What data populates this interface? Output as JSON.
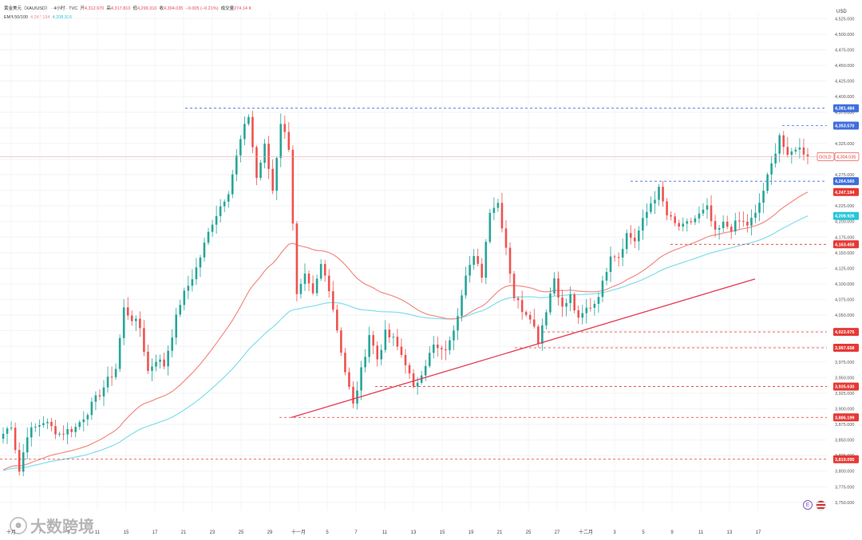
{
  "legend": {
    "symbol": "黄金美元（XAU/USD） · 4小时 · TVC",
    "open_label": "开",
    "open": "4,312.970",
    "high_label": "高",
    "high": "4,317.810",
    "low_label": "低",
    "low": "4,299.310",
    "close_label": "收",
    "close": "4,304.035",
    "change": "−9.005 (−0.21%)",
    "volume_label": "成交量",
    "volume": "274.14 K",
    "ema_label": "EMA 50/100",
    "ema50": "4,247.194",
    "ema100": "4,208.926"
  },
  "watermark": {
    "text": "大数跨境"
  },
  "icons": {
    "event": "e-event-icon",
    "flag": "us-flag-icon"
  },
  "chart_data": {
    "type": "candlestick",
    "currency": "USD",
    "y_range": [
      3725,
      4550
    ],
    "y_ticks": [
      3750,
      3775,
      3800,
      3825,
      3850,
      3875,
      3900,
      3925,
      3950,
      3975,
      4000,
      4025,
      4050,
      4075,
      4100,
      4125,
      4150,
      4175,
      4200,
      4225,
      4250,
      4275,
      4300,
      4325,
      4350,
      4375,
      4400,
      4425,
      4450,
      4475,
      4500,
      4525
    ],
    "x_ticks": [
      "十月",
      "7",
      "9",
      "11",
      "15",
      "17",
      "21",
      "23",
      "25",
      "29",
      "十一月",
      "5",
      "7",
      "11",
      "13",
      "15",
      "19",
      "21",
      "25",
      "27",
      "十二月",
      "3",
      "5",
      "9",
      "11",
      "13",
      "17"
    ],
    "anchors": [
      [
        0,
        3860
      ],
      [
        2,
        3875
      ],
      [
        4,
        3800
      ],
      [
        6,
        3860
      ],
      [
        10,
        3880
      ],
      [
        14,
        3860
      ],
      [
        18,
        3870
      ],
      [
        22,
        3905
      ],
      [
        28,
        3965
      ],
      [
        30,
        4060
      ],
      [
        34,
        4030
      ],
      [
        36,
        3960
      ],
      [
        38,
        3980
      ],
      [
        40,
        3970
      ],
      [
        44,
        4070
      ],
      [
        48,
        4125
      ],
      [
        52,
        4200
      ],
      [
        56,
        4250
      ],
      [
        59,
        4330
      ],
      [
        61,
        4370
      ],
      [
        63,
        4270
      ],
      [
        65,
        4320
      ],
      [
        67,
        4250
      ],
      [
        69,
        4360
      ],
      [
        71,
        4320
      ],
      [
        73,
        4080
      ],
      [
        75,
        4110
      ],
      [
        77,
        4080
      ],
      [
        79,
        4130
      ],
      [
        81,
        4095
      ],
      [
        85,
        3960
      ],
      [
        87,
        3905
      ],
      [
        89,
        3960
      ],
      [
        91,
        4020
      ],
      [
        93,
        3980
      ],
      [
        95,
        4020
      ],
      [
        97,
        4010
      ],
      [
        100,
        3975
      ],
      [
        102,
        3930
      ],
      [
        104,
        3960
      ],
      [
        107,
        4000
      ],
      [
        109,
        3990
      ],
      [
        111,
        4005
      ],
      [
        113,
        4055
      ],
      [
        115,
        4120
      ],
      [
        117,
        4140
      ],
      [
        119,
        4115
      ],
      [
        121,
        4220
      ],
      [
        123,
        4230
      ],
      [
        125,
        4160
      ],
      [
        127,
        4080
      ],
      [
        129,
        4060
      ],
      [
        131,
        4050
      ],
      [
        133,
        4010
      ],
      [
        135,
        4060
      ],
      [
        137,
        4110
      ],
      [
        139,
        4060
      ],
      [
        141,
        4080
      ],
      [
        143,
        4040
      ],
      [
        145,
        4060
      ],
      [
        147,
        4070
      ],
      [
        149,
        4100
      ],
      [
        151,
        4150
      ],
      [
        153,
        4145
      ],
      [
        155,
        4180
      ],
      [
        157,
        4170
      ],
      [
        159,
        4200
      ],
      [
        161,
        4230
      ],
      [
        163,
        4250
      ],
      [
        165,
        4210
      ],
      [
        167,
        4195
      ],
      [
        169,
        4190
      ],
      [
        171,
        4200
      ],
      [
        173,
        4210
      ],
      [
        175,
        4220
      ],
      [
        177,
        4180
      ],
      [
        179,
        4195
      ],
      [
        181,
        4190
      ],
      [
        183,
        4200
      ],
      [
        185,
        4195
      ],
      [
        187,
        4210
      ],
      [
        189,
        4250
      ],
      [
        191,
        4290
      ],
      [
        193,
        4340
      ],
      [
        195,
        4300
      ],
      [
        197,
        4320
      ],
      [
        199,
        4312
      ],
      [
        200,
        4304
      ]
    ],
    "ema_series": [
      {
        "name": "EMA 50",
        "color": "#f28b82",
        "last": 4247.194
      },
      {
        "name": "EMA 100",
        "color": "#80deea",
        "last": 4208.926
      }
    ],
    "horizontal_levels": [
      {
        "price": 4381.484,
        "label": "4,381.484",
        "style": "blue-dashed",
        "color": "#3f6fde"
      },
      {
        "price": 4353.57,
        "label": "4,353.570",
        "style": "blue-dashed",
        "color": "#3f6fde"
      },
      {
        "price": 4304.035,
        "label": "4,304.035",
        "style": "thin-red",
        "color": "#e53935",
        "tag": "GOLD"
      },
      {
        "price": 4264.56,
        "label": "4,264.560",
        "style": "blue-dashed",
        "color": "#3f6fde"
      },
      {
        "price": 4247.194,
        "label": "4,247.194",
        "style": "none",
        "color": "#e53935"
      },
      {
        "price": 4208.926,
        "label": "4,208.926",
        "style": "none",
        "color": "#26c6da"
      },
      {
        "price": 4163.458,
        "label": "4,163.458",
        "style": "red-dashed",
        "color": "#e53935"
      },
      {
        "price": 4023.075,
        "label": "4,023.075",
        "style": "red-dashed",
        "color": "#e53935"
      },
      {
        "price": 3997.658,
        "label": "3,997.658",
        "style": "red-dashed",
        "color": "#e53935"
      },
      {
        "price": 3935.63,
        "label": "3,935.630",
        "style": "red-dashed",
        "color": "#e53935"
      },
      {
        "price": 3886.199,
        "label": "3,886.199",
        "style": "red-dashed",
        "color": "#e53935"
      },
      {
        "price": 3819.095,
        "label": "3,819.095",
        "style": "red-dashed",
        "color": "#e53935"
      }
    ],
    "trendline": {
      "from": [
        3886,
        3887
      ],
      "to": [
        4108,
        4110
      ],
      "color": "#e53950"
    },
    "grid": true
  }
}
